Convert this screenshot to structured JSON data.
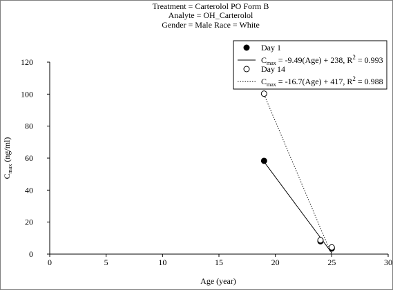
{
  "chart_data": {
    "type": "scatter",
    "title_lines": [
      "Treatment = Carterolol PO Form B",
      "Analyte = OH_Carterolol",
      "Gender = Male  Race = White"
    ],
    "xlabel": "Age (year)",
    "ylabel_main": "C",
    "ylabel_sub": "max",
    "ylabel_unit": " (ng/ml)",
    "xlim": [
      0,
      30
    ],
    "ylim": [
      0,
      120
    ],
    "xticks": [
      0,
      5,
      10,
      15,
      20,
      25,
      30
    ],
    "yticks": [
      0,
      20,
      40,
      60,
      80,
      100,
      120
    ],
    "grid": false,
    "legend_position": "top-right",
    "series": [
      {
        "name": "Day 1",
        "marker": "filled-circle",
        "color": "#000000",
        "points": [
          [
            19,
            58.3
          ],
          [
            24,
            8.0
          ],
          [
            25,
            3.5
          ]
        ],
        "fit": {
          "slope": -9.49,
          "intercept": 238,
          "x_range": [
            19,
            25
          ],
          "style": "solid",
          "label_pre": "C",
          "label_sub": "max",
          "label_mid": " = -9.49(Age) + 238, R",
          "label_sup": "2",
          "label_post": " = 0.993"
        }
      },
      {
        "name": "Day 14",
        "marker": "open-circle",
        "color": "#000000",
        "points": [
          [
            19,
            100.3
          ],
          [
            24,
            8.7
          ],
          [
            25,
            4.2
          ]
        ],
        "fit": {
          "slope": -16.7,
          "intercept": 417,
          "x_range": [
            19,
            25
          ],
          "style": "dotted",
          "label_pre": "C",
          "label_sub": "max",
          "label_mid": " = -16.7(Age) + 417, R",
          "label_sup": "2",
          "label_post": " = 0.988"
        }
      }
    ]
  }
}
